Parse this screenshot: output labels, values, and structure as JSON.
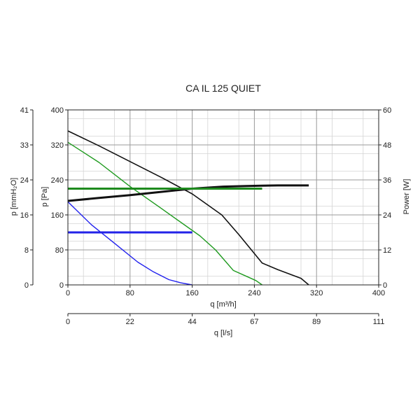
{
  "chart_data": {
    "type": "line",
    "title": "CA IL 125 QUIET",
    "xlabel": "q [m³/h]",
    "x2label": "q [l/s]",
    "ylabel": "p [Pa]",
    "ylabel_left_outer": "p [mmH₂O]",
    "ylabel_right": "Power [W]",
    "xlim": [
      0,
      400
    ],
    "ylim": [
      0,
      400
    ],
    "y_right_lim": [
      0,
      60
    ],
    "grid": true,
    "x_ticks": [
      "0",
      "80",
      "160",
      "240",
      "320",
      "400"
    ],
    "x2_ticks": [
      "0",
      "22",
      "44",
      "67",
      "89",
      "111"
    ],
    "y_ticks": [
      "0",
      "80",
      "160",
      "240",
      "320",
      "400"
    ],
    "y_outer_ticks": [
      "0",
      "8",
      "16",
      "24",
      "33",
      "41"
    ],
    "y_right_ticks": [
      "0",
      "12",
      "24",
      "36",
      "48",
      "60"
    ],
    "series": [
      {
        "color": "#111111",
        "width": 1.6,
        "x": [
          0,
          40,
          80,
          120,
          160,
          198,
          220,
          250,
          270,
          300,
          310
        ],
        "y": [
          352,
          318,
          282,
          246,
          208,
          160,
          115,
          50,
          35,
          15,
          0
        ]
      },
      {
        "color": "#1e9a1e",
        "width": 1.4,
        "x": [
          0,
          40,
          80,
          120,
          170,
          190,
          213,
          232,
          242,
          250
        ],
        "y": [
          326,
          280,
          225,
          175,
          112,
          80,
          33,
          18,
          10,
          0
        ]
      },
      {
        "color": "#2222ee",
        "width": 1.4,
        "x": [
          0,
          30,
          60,
          90,
          110,
          130,
          145,
          160
        ],
        "y": [
          190,
          138,
          95,
          52,
          30,
          12,
          5,
          0
        ]
      },
      {
        "color": "#111111",
        "width": 3,
        "axis": "right",
        "x": [
          0,
          40,
          80,
          120,
          160,
          200,
          230,
          250,
          270,
          300,
          310
        ],
        "y": [
          28.8,
          29.8,
          30.8,
          31.9,
          33.0,
          33.7,
          33.9,
          34.0,
          34.1,
          34.1,
          34.1
        ]
      },
      {
        "color": "#1e8a1e",
        "width": 3,
        "x": [
          0,
          250
        ],
        "y": [
          220,
          220
        ]
      },
      {
        "color": "#2323e8",
        "width": 3,
        "x": [
          0,
          160
        ],
        "y": [
          120,
          120
        ]
      }
    ]
  }
}
